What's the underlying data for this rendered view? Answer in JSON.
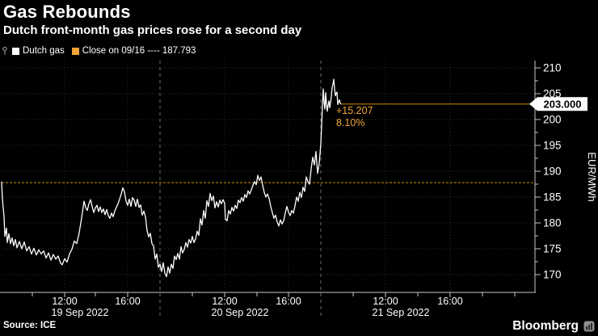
{
  "title": "Gas Rebounds",
  "subtitle": "Dutch front-month gas prices rose for a second day",
  "source": "Source: ICE",
  "brand": "Bloomberg",
  "legend": {
    "items": [
      {
        "label": "Dutch gas",
        "swatch": "#ffffff"
      },
      {
        "label": "Close on 09/16 ---- 187.793",
        "swatch": "#f3a53a"
      }
    ]
  },
  "annotation": {
    "change": "+15.207",
    "percent": "8.10%"
  },
  "last_price_label": "203.000",
  "colors": {
    "background": "#000000",
    "price_line": "#ffffff",
    "close_line": "#a87400",
    "last_price_line": "#b97a00",
    "accent_text": "#f3a53a",
    "grid": "#2f2f2f",
    "separator": "#6e6e6e",
    "axis": "#c9c9c9",
    "tick_label": "#ffffff",
    "tag_bg": "#ffffff",
    "tag_text": "#000000"
  },
  "chart_data": {
    "type": "line",
    "title": "Gas Rebounds",
    "ylabel": "EUR/MWh",
    "ylim": [
      170,
      210
    ],
    "y_ticks": [
      210,
      205,
      200,
      195,
      190,
      185,
      180,
      175,
      170
    ],
    "grid": true,
    "legend_position": "top-left",
    "close_reference_value": 187.793,
    "last_price": 203.0,
    "change_abs": 15.207,
    "change_pct": 8.1,
    "x_time_ticks": [
      {
        "x": 80,
        "label": "12:00"
      },
      {
        "x": 158,
        "label": "16:00"
      },
      {
        "x": 278,
        "label": "12:00"
      },
      {
        "x": 357,
        "label": "16:00"
      },
      {
        "x": 477,
        "label": "12:00"
      },
      {
        "x": 557,
        "label": "16:00"
      }
    ],
    "x_minor_tick_xs": [
      40,
      118,
      238,
      318,
      437,
      517,
      597,
      637
    ],
    "day_separator_xs": [
      198,
      397
    ],
    "date_labels": [
      {
        "x": 99,
        "label": "19 Sep 2022"
      },
      {
        "x": 297,
        "label": "20 Sep 2022"
      },
      {
        "x": 496,
        "label": "21 Sep 2022"
      }
    ],
    "series": [
      {
        "name": "Dutch gas",
        "color": "#ffffff",
        "points": [
          [
            2,
            187.9
          ],
          [
            3,
            184.6
          ],
          [
            5,
            181.2
          ],
          [
            6,
            177.4
          ],
          [
            8,
            179.0
          ],
          [
            9,
            176.2
          ],
          [
            11,
            177.9
          ],
          [
            13,
            176.0
          ],
          [
            15,
            177.1
          ],
          [
            17,
            175.6
          ],
          [
            19,
            176.8
          ],
          [
            21,
            175.2
          ],
          [
            24,
            176.4
          ],
          [
            27,
            175.0
          ],
          [
            30,
            176.3
          ],
          [
            33,
            174.6
          ],
          [
            36,
            175.4
          ],
          [
            39,
            174.0
          ],
          [
            42,
            175.1
          ],
          [
            45,
            173.8
          ],
          [
            48,
            174.8
          ],
          [
            51,
            174.0
          ],
          [
            54,
            174.6
          ],
          [
            57,
            173.2
          ],
          [
            60,
            174.2
          ],
          [
            63,
            172.8
          ],
          [
            66,
            173.9
          ],
          [
            69,
            173.0
          ],
          [
            72,
            173.6
          ],
          [
            75,
            172.2
          ],
          [
            77,
            171.9
          ],
          [
            80,
            173.1
          ],
          [
            83,
            172.4
          ],
          [
            86,
            174.0
          ],
          [
            89,
            174.9
          ],
          [
            92,
            176.5
          ],
          [
            95,
            176.0
          ],
          [
            98,
            178.1
          ],
          [
            101,
            181.0
          ],
          [
            104,
            184.2
          ],
          [
            106,
            183.0
          ],
          [
            108,
            182.4
          ],
          [
            110,
            183.7
          ],
          [
            112,
            184.5
          ],
          [
            114,
            183.2
          ],
          [
            116,
            182.0
          ],
          [
            118,
            182.9
          ],
          [
            120,
            183.4
          ],
          [
            122,
            182.2
          ],
          [
            124,
            183.1
          ],
          [
            126,
            182.0
          ],
          [
            128,
            182.7
          ],
          [
            130,
            181.6
          ],
          [
            132,
            182.6
          ],
          [
            134,
            181.4
          ],
          [
            136,
            180.9
          ],
          [
            138,
            181.9
          ],
          [
            140,
            181.2
          ],
          [
            142,
            182.3
          ],
          [
            144,
            183.0
          ],
          [
            146,
            183.7
          ],
          [
            148,
            184.6
          ],
          [
            150,
            185.6
          ],
          [
            152,
            186.8
          ],
          [
            154,
            186.0
          ],
          [
            156,
            184.2
          ],
          [
            158,
            183.4
          ],
          [
            160,
            184.6
          ],
          [
            162,
            183.2
          ],
          [
            164,
            184.9
          ],
          [
            166,
            184.4
          ],
          [
            168,
            183.2
          ],
          [
            170,
            184.6
          ],
          [
            172,
            183.0
          ],
          [
            174,
            183.5
          ],
          [
            176,
            181.5
          ],
          [
            178,
            182.3
          ],
          [
            180,
            181.2
          ],
          [
            182,
            178.5
          ],
          [
            184,
            177.3
          ],
          [
            186,
            178.0
          ],
          [
            188,
            176.0
          ],
          [
            190,
            175.6
          ],
          [
            192,
            173.0
          ],
          [
            194,
            174.0
          ],
          [
            196,
            171.4
          ],
          [
            198,
            172.0
          ],
          [
            200,
            170.6
          ],
          [
            202,
            172.3
          ],
          [
            204,
            170.3
          ],
          [
            206,
            169.6
          ],
          [
            208,
            171.5
          ],
          [
            210,
            170.3
          ],
          [
            212,
            172.0
          ],
          [
            214,
            171.2
          ],
          [
            216,
            173.6
          ],
          [
            218,
            172.9
          ],
          [
            220,
            174.1
          ],
          [
            222,
            173.0
          ],
          [
            224,
            175.4
          ],
          [
            226,
            174.2
          ],
          [
            228,
            174.9
          ],
          [
            230,
            176.2
          ],
          [
            232,
            175.3
          ],
          [
            234,
            176.8
          ],
          [
            236,
            176.1
          ],
          [
            238,
            177.4
          ],
          [
            240,
            176.2
          ],
          [
            242,
            176.9
          ],
          [
            244,
            178.4
          ],
          [
            246,
            177.6
          ],
          [
            248,
            180.8
          ],
          [
            250,
            179.6
          ],
          [
            252,
            182.4
          ],
          [
            254,
            180.9
          ],
          [
            256,
            184.3
          ],
          [
            258,
            183.2
          ],
          [
            260,
            185.7
          ],
          [
            262,
            184.3
          ],
          [
            264,
            185.2
          ],
          [
            266,
            182.9
          ],
          [
            268,
            184.1
          ],
          [
            270,
            183.1
          ],
          [
            272,
            184.4
          ],
          [
            274,
            183.7
          ],
          [
            276,
            184.5
          ],
          [
            278,
            183.8
          ],
          [
            279,
            180.7
          ],
          [
            281,
            180.4
          ],
          [
            283,
            182.4
          ],
          [
            285,
            181.7
          ],
          [
            287,
            183.0
          ],
          [
            289,
            182.3
          ],
          [
            291,
            183.4
          ],
          [
            293,
            182.8
          ],
          [
            295,
            184.4
          ],
          [
            297,
            183.9
          ],
          [
            299,
            184.9
          ],
          [
            301,
            184.2
          ],
          [
            303,
            185.5
          ],
          [
            305,
            184.9
          ],
          [
            307,
            186.2
          ],
          [
            309,
            185.6
          ],
          [
            311,
            186.4
          ],
          [
            313,
            187.3
          ],
          [
            315,
            188.0
          ],
          [
            317,
            187.4
          ],
          [
            319,
            189.2
          ],
          [
            321,
            188.2
          ],
          [
            323,
            188.9
          ],
          [
            325,
            187.3
          ],
          [
            327,
            185.9
          ],
          [
            329,
            185.0
          ],
          [
            331,
            185.6
          ],
          [
            333,
            184.7
          ],
          [
            335,
            183.2
          ],
          [
            337,
            182.0
          ],
          [
            339,
            180.9
          ],
          [
            341,
            181.5
          ],
          [
            343,
            180.2
          ],
          [
            345,
            179.4
          ],
          [
            347,
            180.6
          ],
          [
            349,
            179.8
          ],
          [
            351,
            180.4
          ],
          [
            353,
            181.9
          ],
          [
            355,
            183.2
          ],
          [
            357,
            182.1
          ],
          [
            359,
            181.4
          ],
          [
            361,
            182.4
          ],
          [
            363,
            181.9
          ],
          [
            365,
            183.3
          ],
          [
            367,
            185.0
          ],
          [
            369,
            184.2
          ],
          [
            371,
            185.9
          ],
          [
            373,
            184.9
          ],
          [
            375,
            186.9
          ],
          [
            377,
            186.1
          ],
          [
            379,
            188.9
          ],
          [
            381,
            188.0
          ],
          [
            383,
            187.5
          ],
          [
            385,
            190.4
          ],
          [
            387,
            192.7
          ],
          [
            389,
            191.2
          ],
          [
            391,
            193.8
          ],
          [
            393,
            189.6
          ],
          [
            395,
            191.5
          ],
          [
            397,
            195.3
          ],
          [
            398,
            199.0
          ],
          [
            400,
            205.9
          ],
          [
            401,
            203.4
          ],
          [
            402,
            202.0
          ],
          [
            403,
            205.2
          ],
          [
            404,
            203.0
          ],
          [
            405,
            201.6
          ],
          [
            406,
            202.8
          ],
          [
            407,
            203.6
          ],
          [
            408,
            202.3
          ],
          [
            409,
            203.2
          ],
          [
            410,
            204.5
          ],
          [
            411,
            206.2
          ],
          [
            412,
            206.8
          ],
          [
            413,
            207.8
          ],
          [
            414,
            206.0
          ],
          [
            415,
            204.6
          ],
          [
            416,
            205.1
          ],
          [
            417,
            205.3
          ],
          [
            418,
            202.9
          ],
          [
            419,
            203.4
          ],
          [
            420,
            203.8
          ],
          [
            421,
            203.2
          ],
          [
            422,
            203.0
          ]
        ]
      }
    ]
  }
}
